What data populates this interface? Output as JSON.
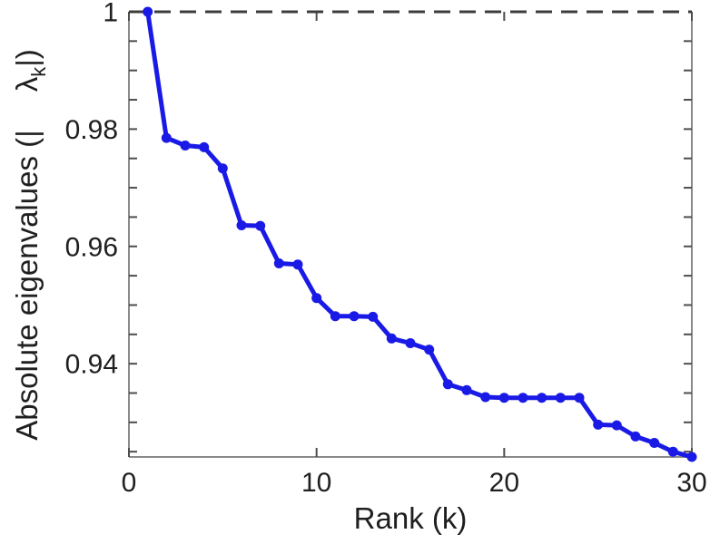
{
  "figure": {
    "background": "#ffffff"
  },
  "chart_data": {
    "type": "line",
    "title": "",
    "xlabel": "Rank (k)",
    "ylabel": "Absolute eigenvalues (| λk|)",
    "ylabel_parts": {
      "prefix": "Absolute eigenvalues (|",
      "symbol": "λ",
      "subscript": "k",
      "suffix": "|)"
    },
    "series": [
      {
        "name": "absolute eigenvalues",
        "x": [
          1,
          2,
          3,
          4,
          5,
          6,
          7,
          8,
          9,
          10,
          11,
          12,
          13,
          14,
          15,
          16,
          17,
          18,
          19,
          20,
          21,
          22,
          23,
          24,
          25,
          26,
          27,
          28,
          29,
          30
        ],
        "y": [
          1.0,
          0.9785,
          0.9772,
          0.9769,
          0.9733,
          0.9636,
          0.9635,
          0.9571,
          0.9569,
          0.9512,
          0.9481,
          0.9481,
          0.948,
          0.9443,
          0.9435,
          0.9424,
          0.9365,
          0.9355,
          0.9343,
          0.9342,
          0.9342,
          0.9342,
          0.9342,
          0.9342,
          0.9296,
          0.9295,
          0.9276,
          0.9265,
          0.925,
          0.9241
        ]
      }
    ],
    "xlim": [
      0,
      30
    ],
    "ylim": [
      0.9241,
      1.0
    ],
    "xticks": {
      "values": [
        0,
        10,
        20,
        30
      ],
      "labels": [
        "0",
        "10",
        "20",
        "30"
      ]
    },
    "yticks": {
      "values": [
        1.0,
        0.98,
        0.96,
        0.94
      ],
      "labels": [
        "1",
        "0.98",
        "0.96",
        "0.94"
      ]
    },
    "y_minor_tick_step": 0.005,
    "annotations": [
      {
        "type": "hline",
        "y": 1.0,
        "style": "dashed"
      }
    ],
    "grid": false,
    "legend": "none",
    "marker": "filled-dot",
    "colors": {
      "line": "#1a1ae6",
      "dash": "#3d3d3d",
      "spine": "#8a8a8a",
      "tick": "#4d4d4d",
      "text": "#1f1f1f"
    }
  }
}
